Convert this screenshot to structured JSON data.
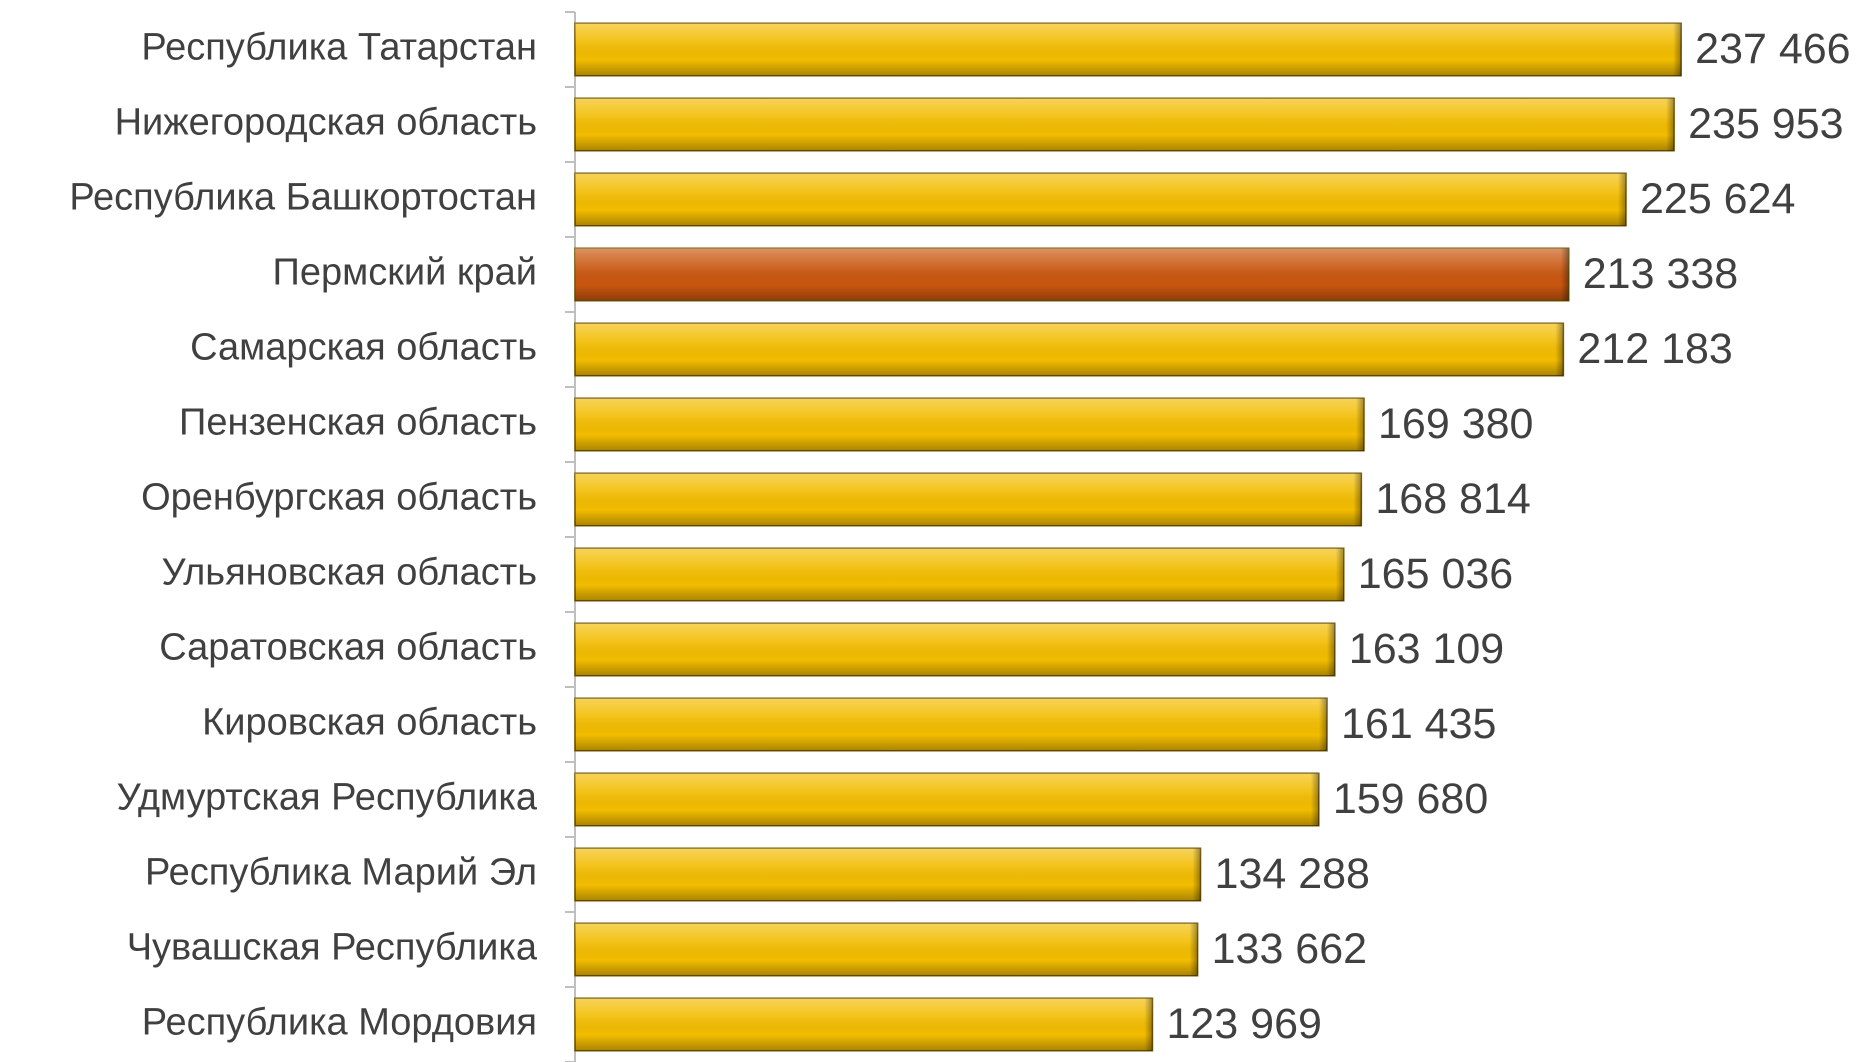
{
  "chart_data": {
    "type": "bar",
    "orientation": "horizontal",
    "categories": [
      "Республика Татарстан",
      "Нижегородская область",
      "Республика Башкортостан",
      "Пермский край",
      "Самарская область",
      "Пензенская область",
      "Оренбургская область",
      "Ульяновская область",
      "Саратовская область",
      "Кировская область",
      "Удмуртская Республика",
      "Республика Марий Эл",
      "Чувашская Республика",
      "Республика Мордовия"
    ],
    "values": [
      237466,
      235953,
      225624,
      213338,
      212183,
      169380,
      168814,
      165036,
      163109,
      161435,
      159680,
      134288,
      133662,
      123969
    ],
    "value_labels": [
      "237 466",
      "235 953",
      "225 624",
      "213 338",
      "212 183",
      "169 380",
      "168 814",
      "165 036",
      "163 109",
      "161 435",
      "159 680",
      "134 288",
      "133 662",
      "123 969"
    ],
    "colors": [
      "#f2bc00",
      "#f2bc00",
      "#f2bc00",
      "#c9560f",
      "#f2bc00",
      "#f2bc00",
      "#f2bc00",
      "#f2bc00",
      "#f2bc00",
      "#f2bc00",
      "#f2bc00",
      "#f2bc00",
      "#f2bc00",
      "#f2bc00"
    ],
    "xlim": [
      0,
      275000
    ]
  }
}
